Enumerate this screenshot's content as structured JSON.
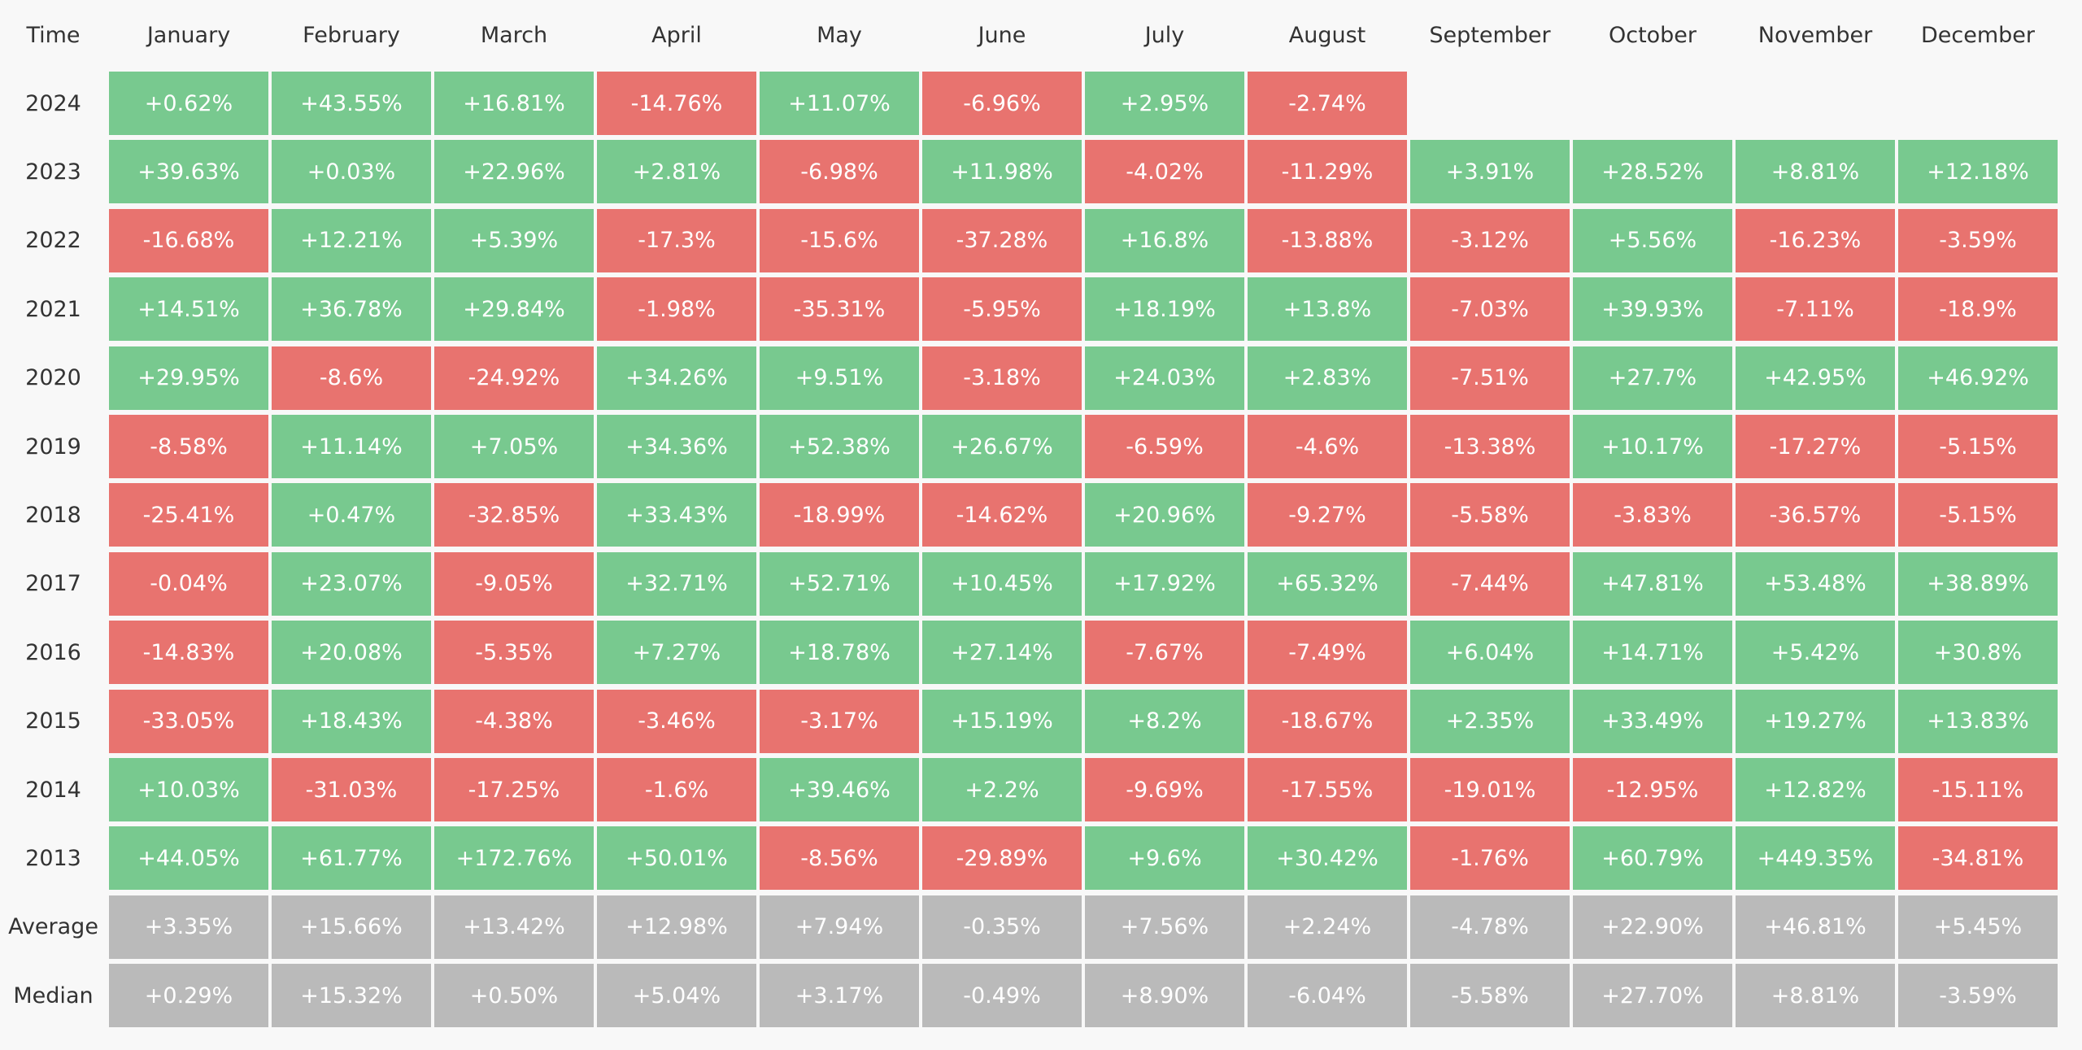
{
  "table": {
    "header": [
      "Time",
      "January",
      "February",
      "March",
      "April",
      "May",
      "June",
      "July",
      "August",
      "September",
      "October",
      "November",
      "December"
    ],
    "rows": [
      {
        "label": "2024",
        "cells": [
          "+0.62%",
          "+43.55%",
          "+16.81%",
          "-14.76%",
          "+11.07%",
          "-6.96%",
          "+2.95%",
          "-2.74%"
        ]
      },
      {
        "label": "2023",
        "cells": [
          "+39.63%",
          "+0.03%",
          "+22.96%",
          "+2.81%",
          "-6.98%",
          "+11.98%",
          "-4.02%",
          "-11.29%",
          "+3.91%",
          "+28.52%",
          "+8.81%",
          "+12.18%"
        ]
      },
      {
        "label": "2022",
        "cells": [
          "-16.68%",
          "+12.21%",
          "+5.39%",
          "-17.3%",
          "-15.6%",
          "-37.28%",
          "+16.8%",
          "-13.88%",
          "-3.12%",
          "+5.56%",
          "-16.23%",
          "-3.59%"
        ]
      },
      {
        "label": "2021",
        "cells": [
          "+14.51%",
          "+36.78%",
          "+29.84%",
          "-1.98%",
          "-35.31%",
          "-5.95%",
          "+18.19%",
          "+13.8%",
          "-7.03%",
          "+39.93%",
          "-7.11%",
          "-18.9%"
        ]
      },
      {
        "label": "2020",
        "cells": [
          "+29.95%",
          "-8.6%",
          "-24.92%",
          "+34.26%",
          "+9.51%",
          "-3.18%",
          "+24.03%",
          "+2.83%",
          "-7.51%",
          "+27.7%",
          "+42.95%",
          "+46.92%"
        ]
      },
      {
        "label": "2019",
        "cells": [
          "-8.58%",
          "+11.14%",
          "+7.05%",
          "+34.36%",
          "+52.38%",
          "+26.67%",
          "-6.59%",
          "-4.6%",
          "-13.38%",
          "+10.17%",
          "-17.27%",
          "-5.15%"
        ]
      },
      {
        "label": "2018",
        "cells": [
          "-25.41%",
          "+0.47%",
          "-32.85%",
          "+33.43%",
          "-18.99%",
          "-14.62%",
          "+20.96%",
          "-9.27%",
          "-5.58%",
          "-3.83%",
          "-36.57%",
          "-5.15%"
        ]
      },
      {
        "label": "2017",
        "cells": [
          "-0.04%",
          "+23.07%",
          "-9.05%",
          "+32.71%",
          "+52.71%",
          "+10.45%",
          "+17.92%",
          "+65.32%",
          "-7.44%",
          "+47.81%",
          "+53.48%",
          "+38.89%"
        ]
      },
      {
        "label": "2016",
        "cells": [
          "-14.83%",
          "+20.08%",
          "-5.35%",
          "+7.27%",
          "+18.78%",
          "+27.14%",
          "-7.67%",
          "-7.49%",
          "+6.04%",
          "+14.71%",
          "+5.42%",
          "+30.8%"
        ]
      },
      {
        "label": "2015",
        "cells": [
          "-33.05%",
          "+18.43%",
          "-4.38%",
          "-3.46%",
          "-3.17%",
          "+15.19%",
          "+8.2%",
          "-18.67%",
          "+2.35%",
          "+33.49%",
          "+19.27%",
          "+13.83%"
        ]
      },
      {
        "label": "2014",
        "cells": [
          "+10.03%",
          "-31.03%",
          "-17.25%",
          "-1.6%",
          "+39.46%",
          "+2.2%",
          "-9.69%",
          "-17.55%",
          "-19.01%",
          "-12.95%",
          "+12.82%",
          "-15.11%"
        ]
      },
      {
        "label": "2013",
        "cells": [
          "+44.05%",
          "+61.77%",
          "+172.76%",
          "+50.01%",
          "-8.56%",
          "-29.89%",
          "+9.6%",
          "+30.42%",
          "-1.76%",
          "+60.79%",
          "+449.35%",
          "-34.81%"
        ]
      }
    ],
    "summary_rows": [
      {
        "label": "Average",
        "cells": [
          "+3.35%",
          "+15.66%",
          "+13.42%",
          "+12.98%",
          "+7.94%",
          "-0.35%",
          "+7.56%",
          "+2.24%",
          "-4.78%",
          "+22.90%",
          "+46.81%",
          "+5.45%"
        ]
      },
      {
        "label": "Median",
        "cells": [
          "+0.29%",
          "+15.32%",
          "+0.50%",
          "+5.04%",
          "+3.17%",
          "-0.49%",
          "+8.90%",
          "-6.04%",
          "-5.58%",
          "+27.70%",
          "+8.81%",
          "-3.59%"
        ]
      }
    ]
  }
}
